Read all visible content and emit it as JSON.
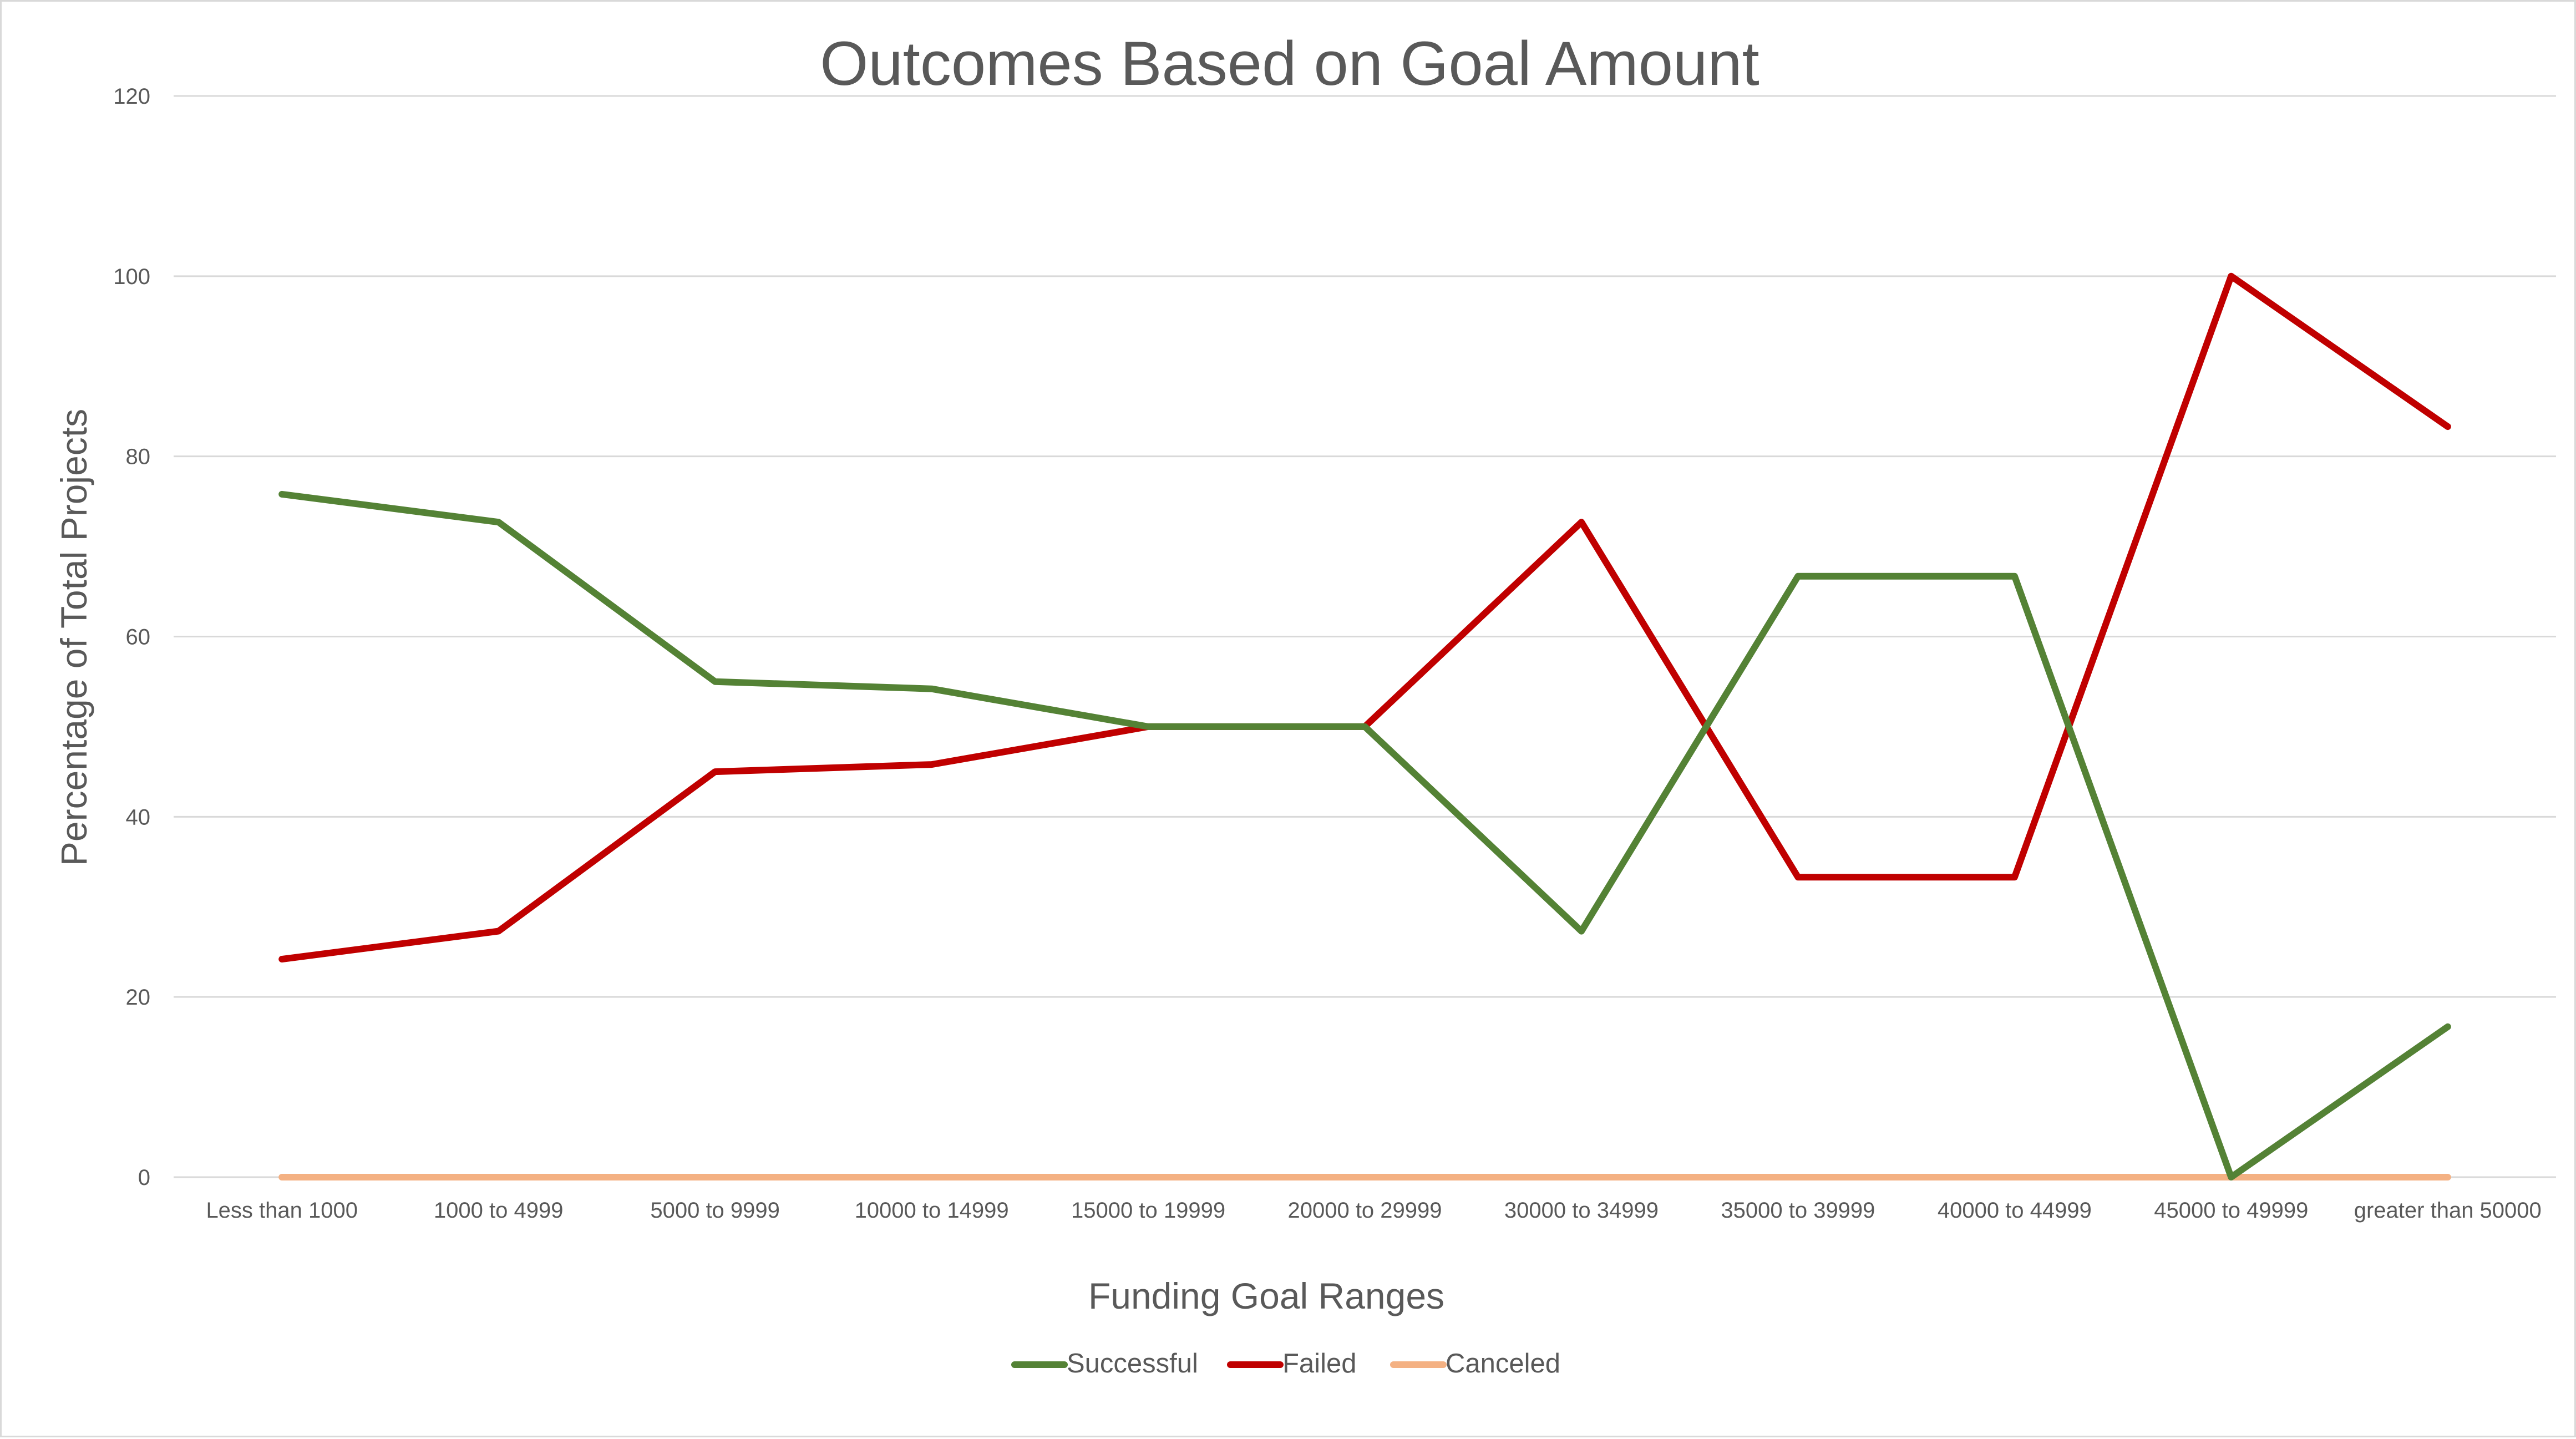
{
  "chart_data": {
    "type": "line",
    "title": "Outcomes Based on Goal Amount",
    "xlabel": "Funding Goal Ranges",
    "ylabel": "Percentage of Total Projects",
    "ylim": [
      0,
      120
    ],
    "y_ticks": [
      0,
      20,
      40,
      60,
      80,
      100,
      120
    ],
    "grid": true,
    "legend_position": "bottom",
    "categories": [
      "Less than 1000",
      "1000 to 4999",
      "5000 to 9999",
      "10000 to 14999",
      "15000 to 19999",
      "20000 to 29999",
      "30000 to 34999",
      "35000 to 39999",
      "40000 to 44999",
      "45000 to 49999",
      "greater than 50000"
    ],
    "series": [
      {
        "name": "Successful",
        "color": "#548235",
        "values": [
          75.8,
          72.7,
          55.0,
          54.2,
          50.0,
          50.0,
          27.3,
          66.7,
          66.7,
          0.0,
          16.7
        ]
      },
      {
        "name": "Failed",
        "color": "#c00000",
        "values": [
          24.2,
          27.3,
          45.0,
          45.8,
          50.0,
          50.0,
          72.7,
          33.3,
          33.3,
          100.0,
          83.3
        ]
      },
      {
        "name": "Canceled",
        "color": "#f4b183",
        "values": [
          0,
          0,
          0,
          0,
          0,
          0,
          0,
          0,
          0,
          0,
          0
        ]
      }
    ]
  }
}
